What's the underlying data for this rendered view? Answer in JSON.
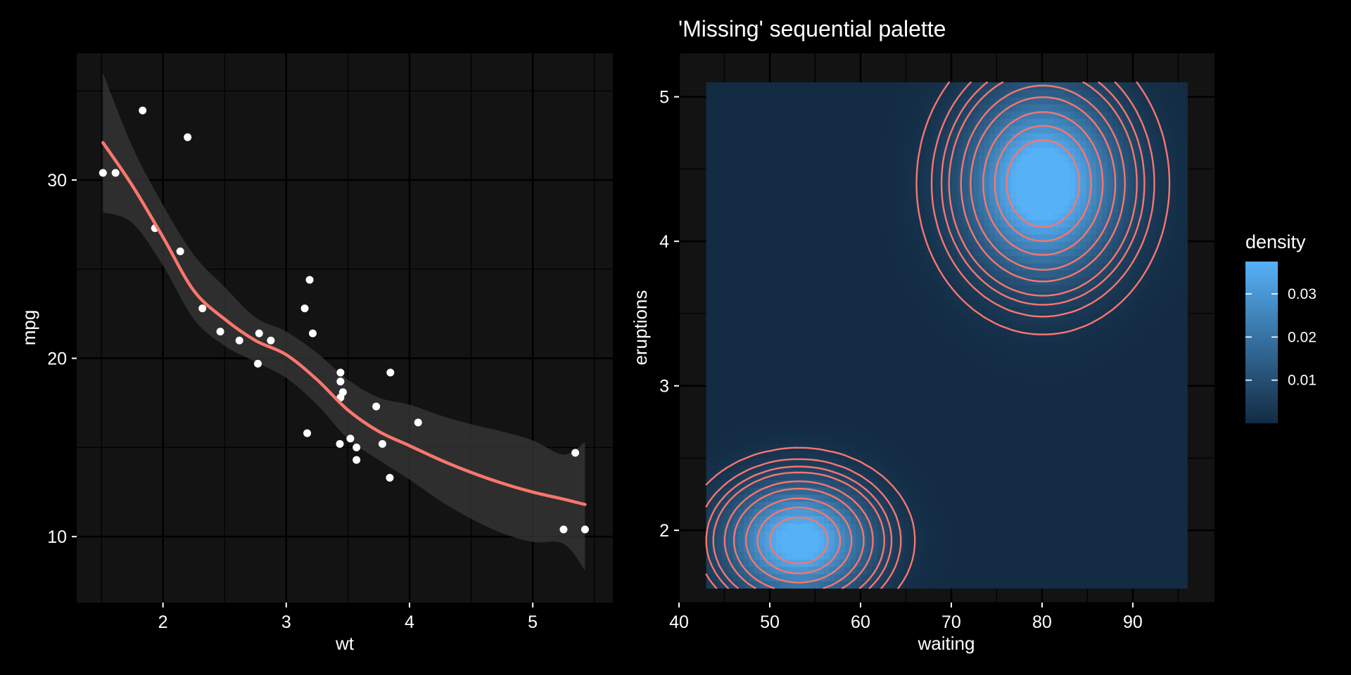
{
  "chart_data": [
    {
      "type": "scatter",
      "title": "",
      "xlabel": "wt",
      "ylabel": "mpg",
      "xlim": [
        1.3,
        5.65
      ],
      "ylim": [
        6.3,
        37.1
      ],
      "x_ticks": [
        2,
        3,
        4,
        5
      ],
      "x_tick_labels": [
        "2",
        "3",
        "4",
        "5"
      ],
      "y_ticks": [
        10,
        20,
        30
      ],
      "y_tick_labels": [
        "10",
        "20",
        "30"
      ],
      "grid": true,
      "colors": {
        "panel": "#131313",
        "grid": "#000000",
        "points": "#ffffff",
        "fit": "#f8766d",
        "band": "#383838"
      },
      "points": [
        {
          "x": 1.513,
          "y": 30.4
        },
        {
          "x": 1.615,
          "y": 30.4
        },
        {
          "x": 1.835,
          "y": 33.9
        },
        {
          "x": 1.935,
          "y": 27.3
        },
        {
          "x": 2.14,
          "y": 26.0
        },
        {
          "x": 2.2,
          "y": 32.4
        },
        {
          "x": 2.32,
          "y": 22.8
        },
        {
          "x": 2.465,
          "y": 21.5
        },
        {
          "x": 2.62,
          "y": 21.0
        },
        {
          "x": 2.77,
          "y": 19.7
        },
        {
          "x": 2.78,
          "y": 21.4
        },
        {
          "x": 2.875,
          "y": 21.0
        },
        {
          "x": 3.15,
          "y": 22.8
        },
        {
          "x": 3.17,
          "y": 15.8
        },
        {
          "x": 3.19,
          "y": 24.4
        },
        {
          "x": 3.215,
          "y": 21.4
        },
        {
          "x": 3.435,
          "y": 15.2
        },
        {
          "x": 3.44,
          "y": 18.7
        },
        {
          "x": 3.44,
          "y": 19.2
        },
        {
          "x": 3.44,
          "y": 17.8
        },
        {
          "x": 3.46,
          "y": 18.1
        },
        {
          "x": 3.52,
          "y": 15.5
        },
        {
          "x": 3.57,
          "y": 15.0
        },
        {
          "x": 3.57,
          "y": 14.3
        },
        {
          "x": 3.73,
          "y": 17.3
        },
        {
          "x": 3.78,
          "y": 15.2
        },
        {
          "x": 3.84,
          "y": 13.3
        },
        {
          "x": 3.845,
          "y": 19.2
        },
        {
          "x": 4.07,
          "y": 16.4
        },
        {
          "x": 5.25,
          "y": 10.4
        },
        {
          "x": 5.345,
          "y": 14.7
        },
        {
          "x": 5.424,
          "y": 10.4
        }
      ],
      "series": [
        {
          "kind": "loess-fit",
          "x": [
            1.513,
            1.75,
            2.0,
            2.25,
            2.5,
            2.75,
            3.0,
            3.25,
            3.5,
            3.75,
            4.0,
            4.25,
            4.5,
            4.75,
            5.0,
            5.25,
            5.424
          ],
          "y": [
            32.1,
            29.7,
            26.8,
            23.8,
            22.2,
            21.0,
            20.2,
            18.8,
            17.1,
            15.9,
            15.1,
            14.3,
            13.6,
            13.0,
            12.5,
            12.1,
            11.8
          ],
          "lower": [
            28.2,
            27.6,
            25.2,
            22.2,
            20.7,
            19.8,
            18.9,
            17.4,
            15.5,
            14.3,
            13.2,
            12.0,
            11.0,
            10.2,
            9.7,
            9.6,
            8.1
          ],
          "upper": [
            36.0,
            31.9,
            28.6,
            25.8,
            24.0,
            22.3,
            21.5,
            20.3,
            18.8,
            17.8,
            17.4,
            16.8,
            16.3,
            15.9,
            15.4,
            14.6,
            15.3
          ]
        }
      ]
    },
    {
      "type": "heatmap",
      "title": "'Missing' sequential palette",
      "xlabel": "waiting",
      "ylabel": "eruptions",
      "xlim": [
        40,
        99
      ],
      "ylim": [
        1.5,
        5.3
      ],
      "x_ticks": [
        40,
        50,
        60,
        70,
        80,
        90
      ],
      "x_tick_labels": [
        "40",
        "50",
        "60",
        "70",
        "80",
        "90"
      ],
      "y_ticks": [
        2,
        3,
        4,
        5
      ],
      "y_tick_labels": [
        "2",
        "3",
        "4",
        "5"
      ],
      "grid": true,
      "data_extent": {
        "x": [
          43,
          96
        ],
        "y": [
          1.6,
          5.1
        ]
      },
      "density_components": [
        {
          "weight": 0.35,
          "mean_x": 53.2,
          "mean_y": 1.93,
          "sd_x": 5.2,
          "sd_y": 0.26
        },
        {
          "weight": 0.65,
          "mean_x": 80.1,
          "mean_y": 4.4,
          "sd_x": 5.6,
          "sd_y": 0.42
        }
      ],
      "contour_levels": [
        0.002,
        0.004,
        0.006,
        0.008,
        0.012,
        0.016,
        0.022,
        0.028,
        0.034
      ],
      "colors": {
        "panel": "#131313",
        "grid": "#000000",
        "low": "#132b43",
        "high": "#56b1f7",
        "contour": "#f8766d"
      },
      "legend": {
        "title": "density",
        "placement": "right",
        "range": [
          0.0,
          0.0375
        ],
        "ticks": [
          0.01,
          0.02,
          0.03
        ],
        "tick_labels": [
          "0.01",
          "0.02",
          "0.03"
        ]
      }
    }
  ]
}
